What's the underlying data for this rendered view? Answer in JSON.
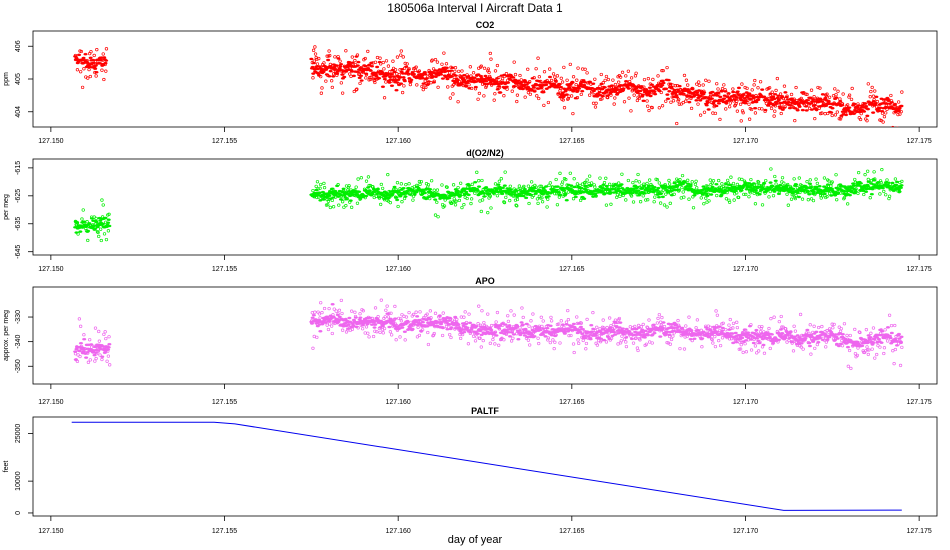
{
  "figure": {
    "title": "180506a   Interval I Aircraft Data 1",
    "xlabel": "day of year"
  },
  "chart_data": [
    {
      "type": "scatter",
      "title": "CO2",
      "ylabel": "ppm",
      "xlabel": "",
      "xlim": [
        127.1495,
        127.1755
      ],
      "ylim": [
        403.55,
        406.45
      ],
      "x_ticks": [
        127.15,
        127.155,
        127.16,
        127.165,
        127.17,
        127.175
      ],
      "x_tick_labels": [
        "127.150",
        "127.155",
        "127.160",
        "127.165",
        "127.170",
        "127.175"
      ],
      "y_ticks": [
        404,
        405,
        406
      ],
      "y_tick_labels": [
        "404",
        "405",
        "406"
      ],
      "color": "#ff0000",
      "grid": false,
      "segments": [
        {
          "x_start": 127.1507,
          "x_end": 127.1516,
          "y_trend": [
            405.6,
            405.6
          ],
          "spread": 0.3
        },
        {
          "x_start": 127.1575,
          "x_end": 127.1745,
          "y_trend": [
            405.35,
            404.05
          ],
          "spread": 0.3
        }
      ]
    },
    {
      "type": "scatter",
      "title": "d(O2/N2)",
      "ylabel": "per meg",
      "xlabel": "",
      "xlim": [
        127.1495,
        127.1755
      ],
      "ylim": [
        -646,
        -612
      ],
      "x_ticks": [
        127.15,
        127.155,
        127.16,
        127.165,
        127.17,
        127.175
      ],
      "x_tick_labels": [
        "127.150",
        "127.155",
        "127.160",
        "127.165",
        "127.170",
        "127.175"
      ],
      "y_ticks": [
        -645,
        -635,
        -625,
        -615
      ],
      "y_tick_labels": [
        "-645",
        "-635",
        "-625",
        "-615"
      ],
      "color": "#00ee00",
      "grid": false,
      "segments": [
        {
          "x_start": 127.1507,
          "x_end": 127.1517,
          "y_trend": [
            -635,
            -636
          ],
          "spread": 3.5
        },
        {
          "x_start": 127.1575,
          "x_end": 127.1745,
          "y_trend": [
            -624,
            -622
          ],
          "spread": 2.5
        }
      ]
    },
    {
      "type": "scatter",
      "title": "APO",
      "ylabel": "approx. per meg",
      "xlabel": "",
      "xlim": [
        127.1495,
        127.1755
      ],
      "ylim": [
        -357,
        -318
      ],
      "x_ticks": [
        127.15,
        127.155,
        127.16,
        127.165,
        127.17,
        127.175
      ],
      "x_tick_labels": [
        "127.150",
        "127.155",
        "127.160",
        "127.165",
        "127.170",
        "127.175"
      ],
      "y_ticks": [
        -350,
        -340,
        -330
      ],
      "y_tick_labels": [
        "-350",
        "-340",
        "-330"
      ],
      "color": "#ee66ee",
      "grid": false,
      "segments": [
        {
          "x_start": 127.1507,
          "x_end": 127.1517,
          "y_trend": [
            -343,
            -343
          ],
          "spread": 4.5
        },
        {
          "x_start": 127.1575,
          "x_end": 127.1745,
          "y_trend": [
            -332,
            -339
          ],
          "spread": 3.5
        }
      ]
    },
    {
      "type": "line",
      "title": "PALTF",
      "ylabel": "feet",
      "xlabel": "day of year",
      "xlim": [
        127.1495,
        127.1755
      ],
      "ylim": [
        -800,
        30000
      ],
      "x_ticks": [
        127.15,
        127.155,
        127.16,
        127.165,
        127.17,
        127.175
      ],
      "x_tick_labels": [
        "127.150",
        "127.155",
        "127.160",
        "127.165",
        "127.170",
        "127.175"
      ],
      "y_ticks": [
        0,
        10000,
        25000
      ],
      "y_tick_labels": [
        "0",
        "10000",
        "25000"
      ],
      "color": "#0000ee",
      "grid": false,
      "x": [
        127.1506,
        127.1547,
        127.1553,
        127.1711,
        127.1745
      ],
      "y": [
        28500,
        28500,
        28000,
        800,
        900
      ]
    }
  ]
}
